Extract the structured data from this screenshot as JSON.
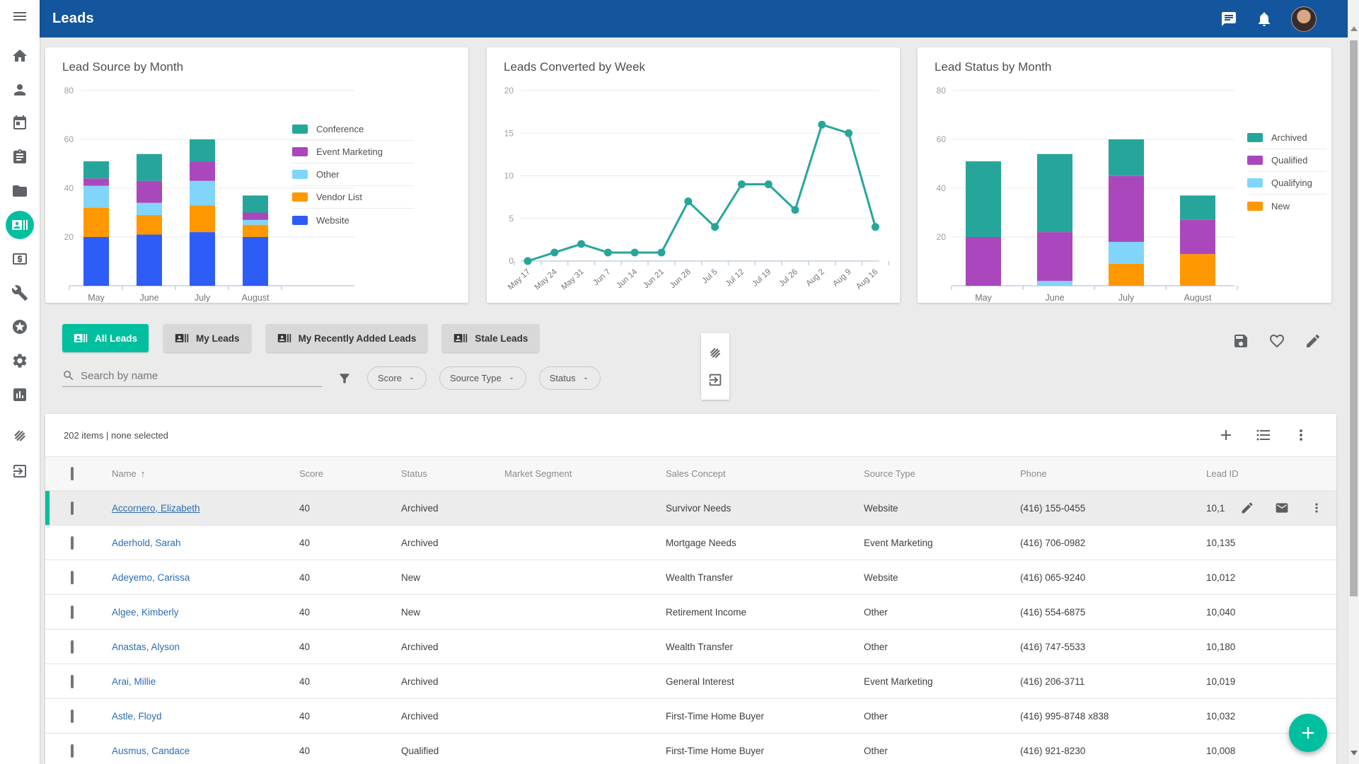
{
  "colors": {
    "appbar_blue": "#14569d",
    "accent_teal": "#00bf9f",
    "chart_teal": "#26a69a",
    "purple": "#ab47bc",
    "light_blue": "#81d4fa",
    "orange": "#ff9800",
    "website_blue": "#2d5cf6",
    "link_blue": "#2a6db4"
  },
  "app_bar": {
    "title": "Leads",
    "icons": [
      "chat",
      "bell"
    ],
    "avatar": "user-avatar"
  },
  "sidebar": {
    "items": [
      {
        "id": "menu",
        "icon": "menu"
      },
      {
        "id": "home",
        "icon": "home"
      },
      {
        "id": "contacts",
        "icon": "person"
      },
      {
        "id": "calendar",
        "icon": "calendar"
      },
      {
        "id": "tasks",
        "icon": "clipboard"
      },
      {
        "id": "documents",
        "icon": "folder"
      },
      {
        "id": "leads",
        "icon": "leads",
        "active": true
      },
      {
        "id": "opportunities",
        "icon": "dollar"
      },
      {
        "id": "tools",
        "icon": "wrench"
      },
      {
        "id": "favorites",
        "icon": "star"
      },
      {
        "id": "settings",
        "icon": "gear"
      },
      {
        "id": "reports",
        "icon": "bar-chart"
      },
      {
        "id": "deals",
        "icon": "handshake"
      },
      {
        "id": "sign-in",
        "icon": "exit"
      }
    ]
  },
  "chart_data": [
    {
      "type": "bar",
      "stacked": true,
      "title": "Lead Source by Month",
      "categories": [
        "May",
        "June",
        "July",
        "August"
      ],
      "series": [
        {
          "name": "Website",
          "color": "#2d5cf6",
          "values": [
            20,
            21,
            22,
            20
          ]
        },
        {
          "name": "Vendor List",
          "color": "#ff9800",
          "values": [
            12,
            8,
            11,
            5
          ]
        },
        {
          "name": "Other",
          "color": "#81d4fa",
          "values": [
            9,
            5,
            10,
            2
          ]
        },
        {
          "name": "Event Marketing",
          "color": "#ab47bc",
          "values": [
            3,
            9,
            8,
            3
          ]
        },
        {
          "name": "Conference",
          "color": "#26a69a",
          "values": [
            7,
            11,
            9,
            7
          ]
        }
      ],
      "legend_order": [
        "Conference",
        "Event Marketing",
        "Other",
        "Vendor List",
        "Website"
      ],
      "ylim": [
        0,
        80
      ],
      "yticks": [
        20,
        40,
        60,
        80
      ],
      "grid": true,
      "legend_position": "right"
    },
    {
      "type": "line",
      "title": "Leads Converted by Week",
      "x": [
        "May 17",
        "May 24",
        "May 31",
        "Jun 7",
        "Jun 14",
        "Jun 21",
        "Jun 28",
        "Jul 5",
        "Jul 12",
        "Jul 19",
        "Jul 26",
        "Aug 2",
        "Aug 9",
        "Aug 16"
      ],
      "values": [
        0,
        1,
        2,
        1,
        1,
        1,
        7,
        4,
        9,
        9,
        6,
        16,
        15,
        4
      ],
      "color": "#26a69a",
      "ylim": [
        0,
        20
      ],
      "yticks": [
        0,
        5,
        10,
        15,
        20
      ],
      "grid": true
    },
    {
      "type": "bar",
      "stacked": true,
      "title": "Lead Status by Month",
      "categories": [
        "May",
        "June",
        "July",
        "August"
      ],
      "series": [
        {
          "name": "New",
          "color": "#ff9800",
          "values": [
            0,
            0,
            9,
            13
          ]
        },
        {
          "name": "Qualifying",
          "color": "#81d4fa",
          "values": [
            0,
            2,
            9,
            0
          ]
        },
        {
          "name": "Qualified",
          "color": "#ab47bc",
          "values": [
            20,
            20,
            27,
            14
          ]
        },
        {
          "name": "Archived",
          "color": "#26a69a",
          "values": [
            31,
            32,
            15,
            10
          ]
        }
      ],
      "legend_order": [
        "Archived",
        "Qualified",
        "Qualifying",
        "New"
      ],
      "ylim": [
        0,
        80
      ],
      "yticks": [
        20,
        40,
        60,
        80
      ],
      "grid": true,
      "legend_position": "right"
    }
  ],
  "lead_views": {
    "tabs": [
      {
        "label": "All Leads",
        "active": true
      },
      {
        "label": "My Leads",
        "active": false
      },
      {
        "label": "My Recently Added Leads",
        "active": false
      },
      {
        "label": "Stale Leads",
        "active": false
      }
    ]
  },
  "view_actions": [
    "save",
    "favorite",
    "edit"
  ],
  "side_tools": [
    "handshake",
    "assign"
  ],
  "filters": {
    "search": {
      "placeholder": "Search by name",
      "value": ""
    },
    "dropdowns": [
      {
        "label": "Score"
      },
      {
        "label": "Source Type"
      },
      {
        "label": "Status"
      }
    ]
  },
  "table": {
    "summary": "202 items | none selected",
    "toolbar_icons": [
      "add",
      "view-list",
      "more"
    ],
    "columns": [
      "Name",
      "Score",
      "Status",
      "Market Segment",
      "Sales Concept",
      "Source Type",
      "Phone",
      "Lead ID"
    ],
    "sort": {
      "column": "Name",
      "direction": "asc",
      "arrow": "↑"
    },
    "rows": [
      {
        "name": "Accornero, Elizabeth",
        "score": "40",
        "status": "Archived",
        "market_segment": "",
        "sales_concept": "Survivor Needs",
        "source_type": "Website",
        "phone": "(416) 155-0455",
        "lead_id": "10,1",
        "selected": true,
        "actions": [
          "edit",
          "mail",
          "more"
        ]
      },
      {
        "name": "Aderhold, Sarah",
        "score": "40",
        "status": "Archived",
        "market_segment": "",
        "sales_concept": "Mortgage Needs",
        "source_type": "Event Marketing",
        "phone": "(416) 706-0982",
        "lead_id": "10,135",
        "selected": false
      },
      {
        "name": "Adeyemo, Carissa",
        "score": "40",
        "status": "New",
        "market_segment": "",
        "sales_concept": "Wealth Transfer",
        "source_type": "Website",
        "phone": "(416) 065-9240",
        "lead_id": "10,012",
        "selected": false
      },
      {
        "name": "Algee, Kimberly",
        "score": "40",
        "status": "New",
        "market_segment": "",
        "sales_concept": "Retirement Income",
        "source_type": "Other",
        "phone": "(416) 554-6875",
        "lead_id": "10,040",
        "selected": false
      },
      {
        "name": "Anastas, Alyson",
        "score": "40",
        "status": "Archived",
        "market_segment": "",
        "sales_concept": "Wealth Transfer",
        "source_type": "Other",
        "phone": "(416) 747-5533",
        "lead_id": "10,180",
        "selected": false
      },
      {
        "name": "Arai, Millie",
        "score": "40",
        "status": "Archived",
        "market_segment": "",
        "sales_concept": "General Interest",
        "source_type": "Event Marketing",
        "phone": "(416) 206-3711",
        "lead_id": "10,019",
        "selected": false
      },
      {
        "name": "Astle, Floyd",
        "score": "40",
        "status": "Archived",
        "market_segment": "",
        "sales_concept": "First-Time Home Buyer",
        "source_type": "Other",
        "phone": "(416) 995-8748 x838",
        "lead_id": "10,032",
        "selected": false
      },
      {
        "name": "Ausmus, Candace",
        "score": "40",
        "status": "Qualified",
        "market_segment": "",
        "sales_concept": "First-Time Home Buyer",
        "source_type": "Other",
        "phone": "(416) 921-8230",
        "lead_id": "10,008",
        "selected": false
      }
    ]
  },
  "fab": {
    "icon": "plus"
  }
}
